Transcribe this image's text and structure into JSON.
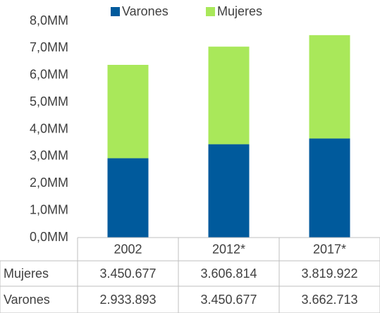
{
  "chart_data": {
    "type": "bar",
    "stacked": true,
    "categories": [
      "2002",
      "2012*",
      "2017*"
    ],
    "series": [
      {
        "name": "Varones",
        "color": "#005a9c",
        "values": [
          2933893,
          3450677,
          3662713
        ],
        "value_labels": [
          "2.933.893",
          "3.450.677",
          "3.662.713"
        ]
      },
      {
        "name": "Mujeres",
        "color": "#a9e85a",
        "values": [
          3450677,
          3606814,
          3819922
        ],
        "value_labels": [
          "3.450.677",
          "3.606.814",
          "3.819.922"
        ]
      }
    ],
    "ylim": [
      0,
      8000000
    ],
    "yticks": [
      {
        "value": 0,
        "label": "0,0MM"
      },
      {
        "value": 1000000,
        "label": "1,0MM"
      },
      {
        "value": 2000000,
        "label": "2,0MM"
      },
      {
        "value": 3000000,
        "label": "3,0MM"
      },
      {
        "value": 4000000,
        "label": "4,0MM"
      },
      {
        "value": 5000000,
        "label": "5,0MM"
      },
      {
        "value": 6000000,
        "label": "6,0MM"
      },
      {
        "value": 7000000,
        "label": "7,0MM"
      },
      {
        "value": 8000000,
        "label": "8,0MM"
      }
    ],
    "legend": "top",
    "data_table": true
  }
}
